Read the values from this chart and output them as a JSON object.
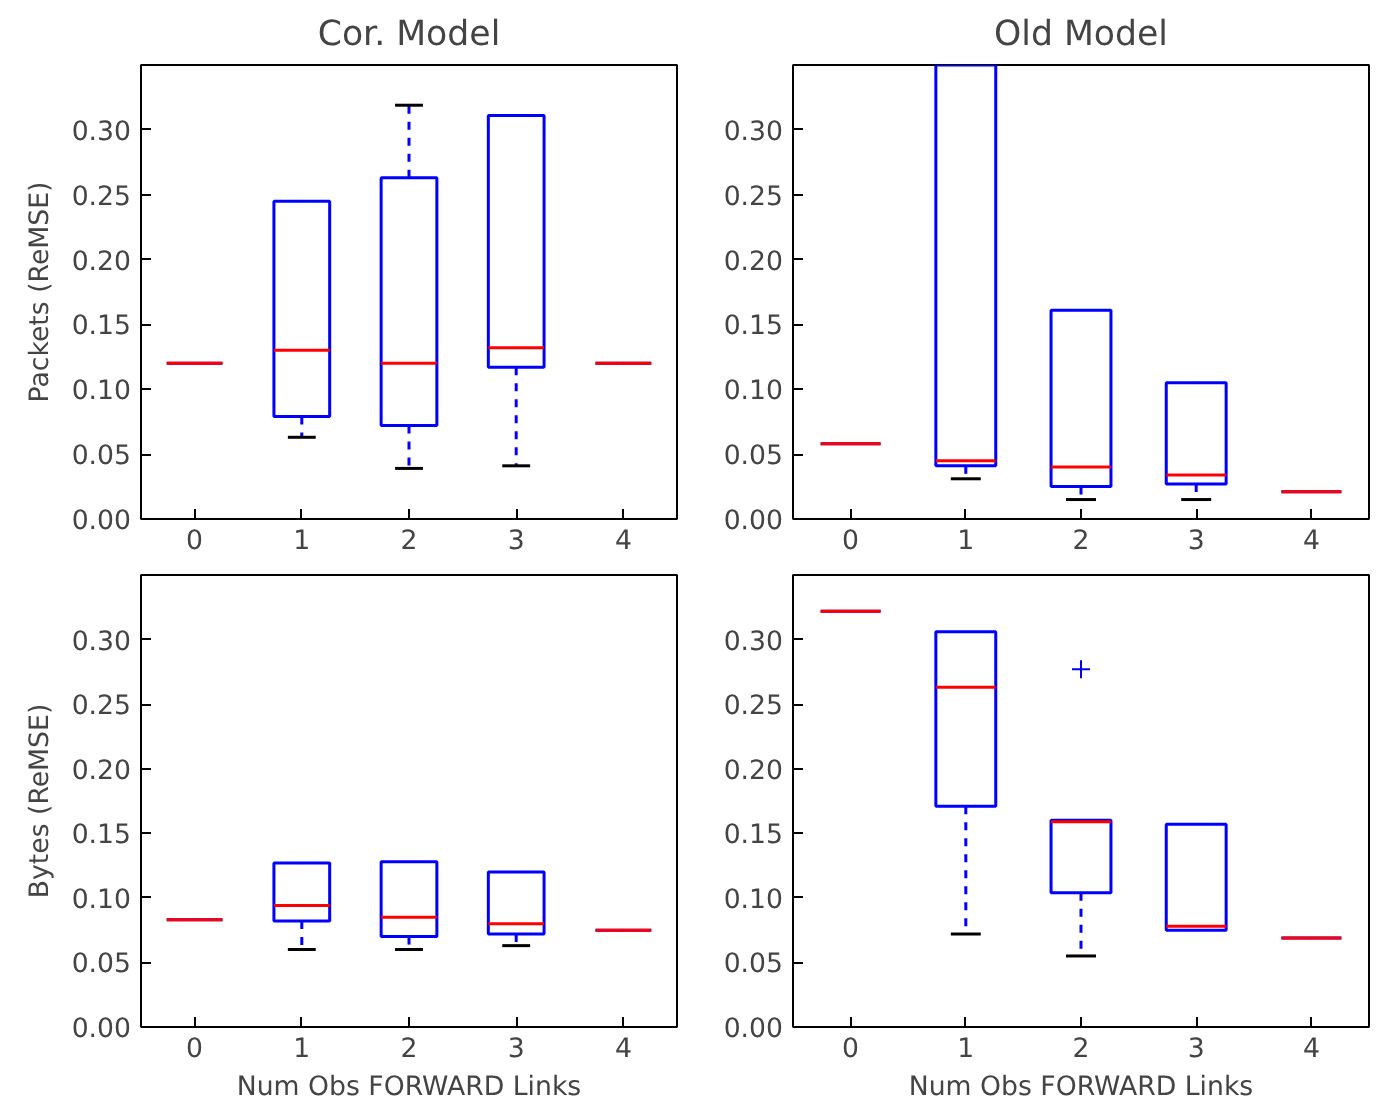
{
  "chart_data": [
    {
      "type": "box",
      "title": "Cor. Model",
      "ylabel": "Packets (ReMSE)",
      "categories": [
        "0",
        "1",
        "2",
        "3",
        "4"
      ],
      "ylim": [
        0,
        0.35
      ],
      "yticks": [
        {
          "value": 0,
          "label": "0.00"
        },
        0.05,
        {
          "value": 0.1,
          "label": "0.10"
        },
        0.15,
        {
          "value": 0.2,
          "label": "0.20"
        },
        0.25,
        {
          "value": 0.3,
          "label": "0.30"
        }
      ],
      "series": [
        {
          "color": "#0000ff",
          "boxes": [
            {
              "low": 0.12,
              "q1": 0.12,
              "median": 0.12,
              "q3": 0.12,
              "high": 0.12
            },
            {
              "low": 0.063,
              "q1": 0.079,
              "median": 0.13,
              "q3": 0.245,
              "high": 0.245
            },
            {
              "low": 0.039,
              "q1": 0.072,
              "median": 0.12,
              "q3": 0.263,
              "high": 0.319
            },
            {
              "low": 0.041,
              "q1": 0.117,
              "median": 0.132,
              "q3": 0.311,
              "high": 0.311
            },
            {
              "low": 0.12,
              "q1": 0.12,
              "median": 0.12,
              "q3": 0.12,
              "high": 0.12
            }
          ]
        }
      ]
    },
    {
      "type": "box",
      "title": "Old Model",
      "categories": [
        "0",
        "1",
        "2",
        "3",
        "4"
      ],
      "ylim": [
        0,
        0.35
      ],
      "yticks": [
        {
          "value": 0,
          "label": "0.00"
        },
        0.05,
        {
          "value": 0.1,
          "label": "0.10"
        },
        0.15,
        {
          "value": 0.2,
          "label": "0.20"
        },
        0.25,
        {
          "value": 0.3,
          "label": "0.30"
        }
      ],
      "series": [
        {
          "color": "#0000ff",
          "boxes": [
            {
              "low": 0.058,
              "q1": 0.058,
              "median": 0.058,
              "q3": 0.058,
              "high": 0.058
            },
            {
              "low": 0.031,
              "q1": 0.041,
              "median": 0.045,
              "q3": 0.35,
              "high": 0.35
            },
            {
              "low": 0.015,
              "q1": 0.025,
              "median": 0.04,
              "q3": 0.161,
              "high": 0.161
            },
            {
              "low": 0.015,
              "q1": 0.027,
              "median": 0.034,
              "q3": 0.105,
              "high": 0.105
            },
            {
              "low": 0.021,
              "q1": 0.021,
              "median": 0.021,
              "q3": 0.021,
              "high": 0.021
            }
          ]
        }
      ]
    },
    {
      "type": "box",
      "xlabel": "Num Obs FORWARD Links",
      "ylabel": "Bytes (ReMSE)",
      "categories": [
        "0",
        "1",
        "2",
        "3",
        "4"
      ],
      "ylim": [
        0,
        0.35
      ],
      "yticks": [
        {
          "value": 0,
          "label": "0.00"
        },
        0.05,
        {
          "value": 0.1,
          "label": "0.10"
        },
        0.15,
        {
          "value": 0.2,
          "label": "0.20"
        },
        0.25,
        {
          "value": 0.3,
          "label": "0.30"
        }
      ],
      "series": [
        {
          "color": "#0000ff",
          "boxes": [
            {
              "low": 0.083,
              "q1": 0.083,
              "median": 0.083,
              "q3": 0.083,
              "high": 0.083
            },
            {
              "low": 0.06,
              "q1": 0.082,
              "median": 0.094,
              "q3": 0.127,
              "high": 0.127
            },
            {
              "low": 0.06,
              "q1": 0.07,
              "median": 0.085,
              "q3": 0.128,
              "high": 0.128
            },
            {
              "low": 0.063,
              "q1": 0.072,
              "median": 0.08,
              "q3": 0.12,
              "high": 0.12
            },
            {
              "low": 0.075,
              "q1": 0.075,
              "median": 0.075,
              "q3": 0.075,
              "high": 0.075
            }
          ]
        }
      ]
    },
    {
      "type": "box",
      "xlabel": "Num Obs FORWARD Links",
      "categories": [
        "0",
        "1",
        "2",
        "3",
        "4"
      ],
      "ylim": [
        0,
        0.35
      ],
      "yticks": [
        {
          "value": 0,
          "label": "0.00"
        },
        0.05,
        {
          "value": 0.1,
          "label": "0.10"
        },
        0.15,
        {
          "value": 0.2,
          "label": "0.20"
        },
        0.25,
        {
          "value": 0.3,
          "label": "0.30"
        }
      ],
      "series": [
        {
          "color": "#0000ff",
          "boxes": [
            {
              "low": 0.322,
              "q1": 0.322,
              "median": 0.322,
              "q3": 0.322,
              "high": 0.322
            },
            {
              "low": 0.072,
              "q1": 0.171,
              "median": 0.263,
              "q3": 0.306,
              "high": 0.306
            },
            {
              "low": 0.055,
              "q1": 0.104,
              "median": 0.159,
              "q3": 0.16,
              "high": 0.16,
              "outliers": [
                0.277
              ]
            },
            {
              "low": 0.075,
              "q1": 0.075,
              "median": 0.078,
              "q3": 0.157,
              "high": 0.157
            },
            {
              "low": 0.069,
              "q1": 0.069,
              "median": 0.069,
              "q3": 0.069,
              "high": 0.069
            }
          ]
        }
      ]
    }
  ]
}
